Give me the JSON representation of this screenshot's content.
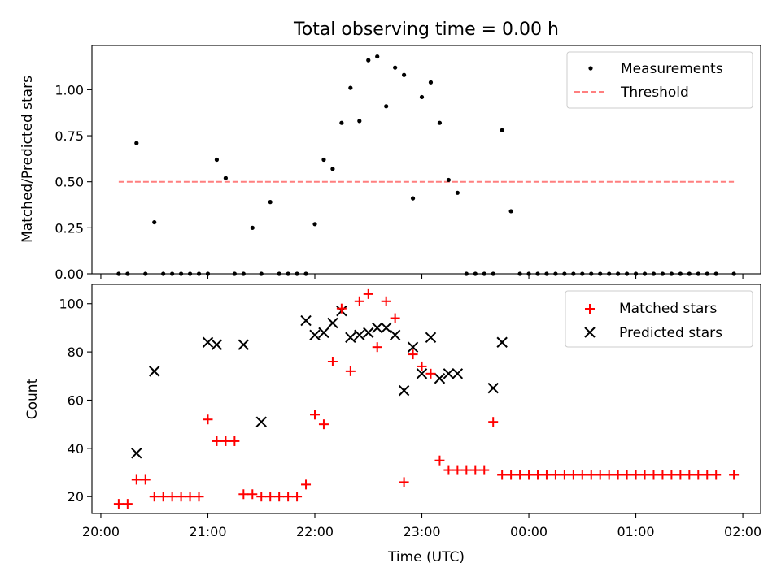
{
  "chart_data": [
    {
      "type": "scatter",
      "title": "Total observing time = 0.00 h",
      "xlabel": "",
      "ylabel": "Matched/Predicted stars",
      "ylim": [
        0,
        1.24
      ],
      "yticks": [
        "0.00",
        "0.25",
        "0.50",
        "0.75",
        "1.00"
      ],
      "ytick_values": [
        0,
        0.25,
        0.5,
        0.75,
        1.0
      ],
      "legend_position": "top-right",
      "series": [
        {
          "name": "Measurements",
          "marker": "dot",
          "color": "#000000",
          "x": [
            "20:10",
            "20:15",
            "20:20",
            "20:25",
            "20:30",
            "20:35",
            "20:40",
            "20:45",
            "20:50",
            "20:55",
            "21:00",
            "21:05",
            "21:10",
            "21:15",
            "21:20",
            "21:25",
            "21:30",
            "21:35",
            "21:40",
            "21:45",
            "21:50",
            "21:55",
            "22:00",
            "22:05",
            "22:10",
            "22:15",
            "22:20",
            "22:25",
            "22:30",
            "22:35",
            "22:40",
            "22:45",
            "22:50",
            "22:55",
            "23:00",
            "23:05",
            "23:10",
            "23:15",
            "23:20",
            "23:25",
            "23:30",
            "23:35",
            "23:40",
            "23:45",
            "23:50",
            "23:55",
            "00:00",
            "00:05",
            "00:10",
            "00:15",
            "00:20",
            "00:25",
            "00:30",
            "00:35",
            "00:40",
            "00:45",
            "00:50",
            "00:55",
            "01:00",
            "01:05",
            "01:10",
            "01:15",
            "01:20",
            "01:25",
            "01:30",
            "01:35",
            "01:40",
            "01:45",
            "01:55"
          ],
          "y": [
            0,
            0,
            0.71,
            0,
            0.28,
            0,
            0,
            0,
            0,
            0,
            0,
            0.62,
            0.52,
            0,
            0,
            0.25,
            0,
            0.39,
            0,
            0,
            0,
            0,
            0.27,
            0.62,
            0.57,
            0.82,
            1.01,
            0.83,
            1.16,
            1.18,
            0.91,
            1.12,
            1.08,
            0.41,
            0.96,
            1.04,
            0.82,
            0.51,
            0.44,
            0,
            0,
            0,
            0,
            0.78,
            0.34,
            0,
            0,
            0,
            0,
            0,
            0,
            0,
            0,
            0,
            0,
            0,
            0,
            0,
            0,
            0,
            0,
            0,
            0,
            0,
            0,
            0,
            0,
            0,
            0
          ]
        },
        {
          "name": "Threshold",
          "line": "dashed",
          "color": "#ff7f7f",
          "x": [
            "20:10",
            "01:55"
          ],
          "y": [
            0.5,
            0.5
          ]
        }
      ]
    },
    {
      "type": "scatter",
      "title": "",
      "xlabel": "Time (UTC)",
      "ylabel": "Count",
      "ylim": [
        13,
        108
      ],
      "yticks": [
        "20",
        "40",
        "60",
        "80",
        "100"
      ],
      "ytick_values": [
        20,
        40,
        60,
        80,
        100
      ],
      "xticks": [
        "20:00",
        "21:00",
        "22:00",
        "23:00",
        "00:00",
        "01:00",
        "02:00"
      ],
      "xlim": [
        "19:55",
        "02:10"
      ],
      "legend_position": "top-right",
      "series": [
        {
          "name": "Matched stars",
          "marker": "plus",
          "color": "#ff0000",
          "x": [
            "20:10",
            "20:15",
            "20:20",
            "20:25",
            "20:30",
            "20:35",
            "20:40",
            "20:45",
            "20:50",
            "20:55",
            "21:00",
            "21:05",
            "21:10",
            "21:15",
            "21:20",
            "21:25",
            "21:30",
            "21:35",
            "21:40",
            "21:45",
            "21:50",
            "21:55",
            "22:00",
            "22:05",
            "22:10",
            "22:15",
            "22:20",
            "22:25",
            "22:30",
            "22:35",
            "22:40",
            "22:45",
            "22:50",
            "22:55",
            "23:00",
            "23:05",
            "23:10",
            "23:15",
            "23:20",
            "23:25",
            "23:30",
            "23:35",
            "23:40",
            "23:45",
            "23:50",
            "23:55",
            "00:00",
            "00:05",
            "00:10",
            "00:15",
            "00:20",
            "00:25",
            "00:30",
            "00:35",
            "00:40",
            "00:45",
            "00:50",
            "00:55",
            "01:00",
            "01:05",
            "01:10",
            "01:15",
            "01:20",
            "01:25",
            "01:30",
            "01:35",
            "01:40",
            "01:45",
            "01:55"
          ],
          "y": [
            17,
            17,
            27,
            27,
            20,
            20,
            20,
            20,
            20,
            20,
            52,
            43,
            43,
            43,
            21,
            21,
            20,
            20,
            20,
            20,
            20,
            25,
            54,
            50,
            76,
            98,
            72,
            101,
            104,
            82,
            101,
            94,
            26,
            79,
            74,
            71,
            35,
            31,
            31,
            31,
            31,
            31,
            51,
            29,
            29,
            29,
            29,
            29,
            29,
            29,
            29,
            29,
            29,
            29,
            29,
            29,
            29,
            29,
            29,
            29,
            29,
            29,
            29,
            29,
            29,
            29,
            29,
            29,
            29
          ]
        },
        {
          "name": "Predicted stars",
          "marker": "x",
          "color": "#000000",
          "x": [
            "20:20",
            "20:30",
            "21:00",
            "21:05",
            "21:20",
            "21:30",
            "21:55",
            "22:00",
            "22:05",
            "22:10",
            "22:15",
            "22:20",
            "22:25",
            "22:30",
            "22:35",
            "22:40",
            "22:45",
            "22:50",
            "22:55",
            "23:00",
            "23:05",
            "23:10",
            "23:15",
            "23:20",
            "23:40",
            "23:45"
          ],
          "y": [
            38,
            72,
            84,
            83,
            83,
            51,
            93,
            87,
            88,
            92,
            97,
            86,
            87,
            88,
            90,
            90,
            87,
            64,
            82,
            71,
            86,
            69,
            71,
            71,
            65,
            84
          ]
        }
      ]
    }
  ]
}
